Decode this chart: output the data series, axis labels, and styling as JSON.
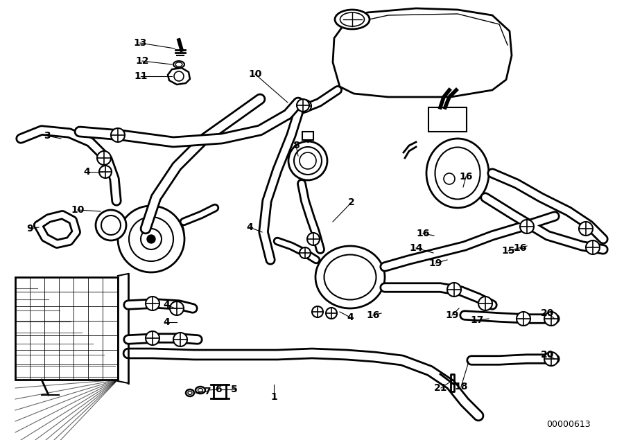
{
  "bg_color": "#ffffff",
  "line_color": "#000000",
  "fig_width": 9.0,
  "fig_height": 6.35,
  "dpi": 100,
  "diagram_id": "00000613",
  "hose_lw": 10,
  "hose_lw_inner": 7
}
